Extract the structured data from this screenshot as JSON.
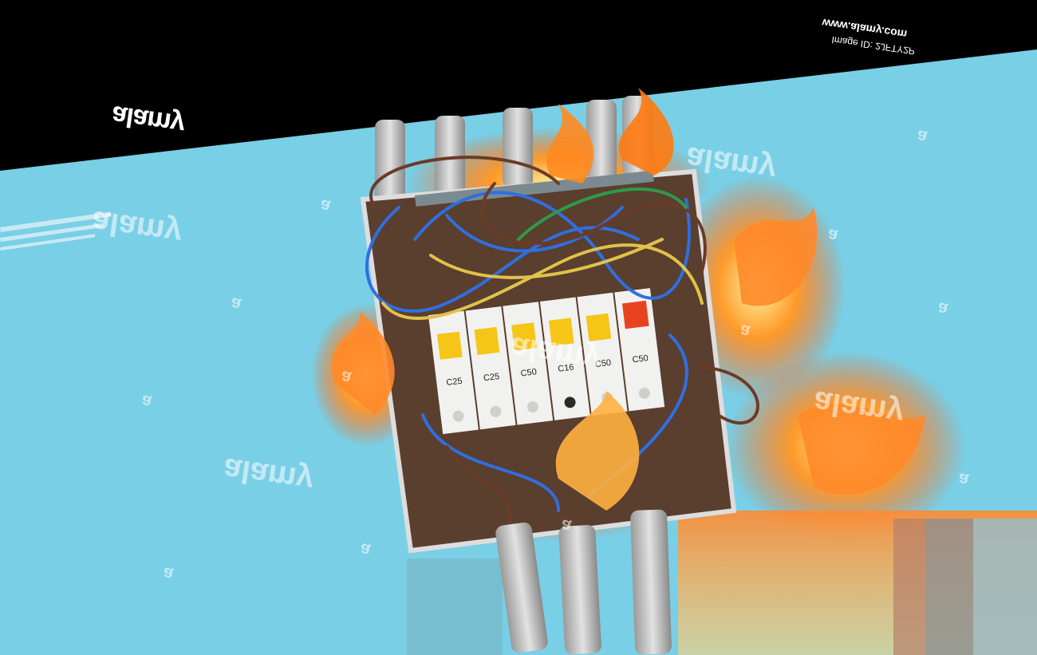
{
  "header": {
    "logo_text": "alamy",
    "site_url": "www.alamy.com",
    "image_id": "Image ID: 2JFTY2P"
  },
  "watermarks": {
    "big_text": "alamy",
    "small_text": "a"
  },
  "breaker_labels": [
    "C25",
    "C25",
    "C50",
    "C16",
    "C50",
    "C50"
  ],
  "colors": {
    "background": "#79cfe6",
    "header_band": "#000000",
    "flame": "#ff7a1a",
    "breaker_yellow": "#f5c518",
    "breaker_red": "#e8431f"
  }
}
